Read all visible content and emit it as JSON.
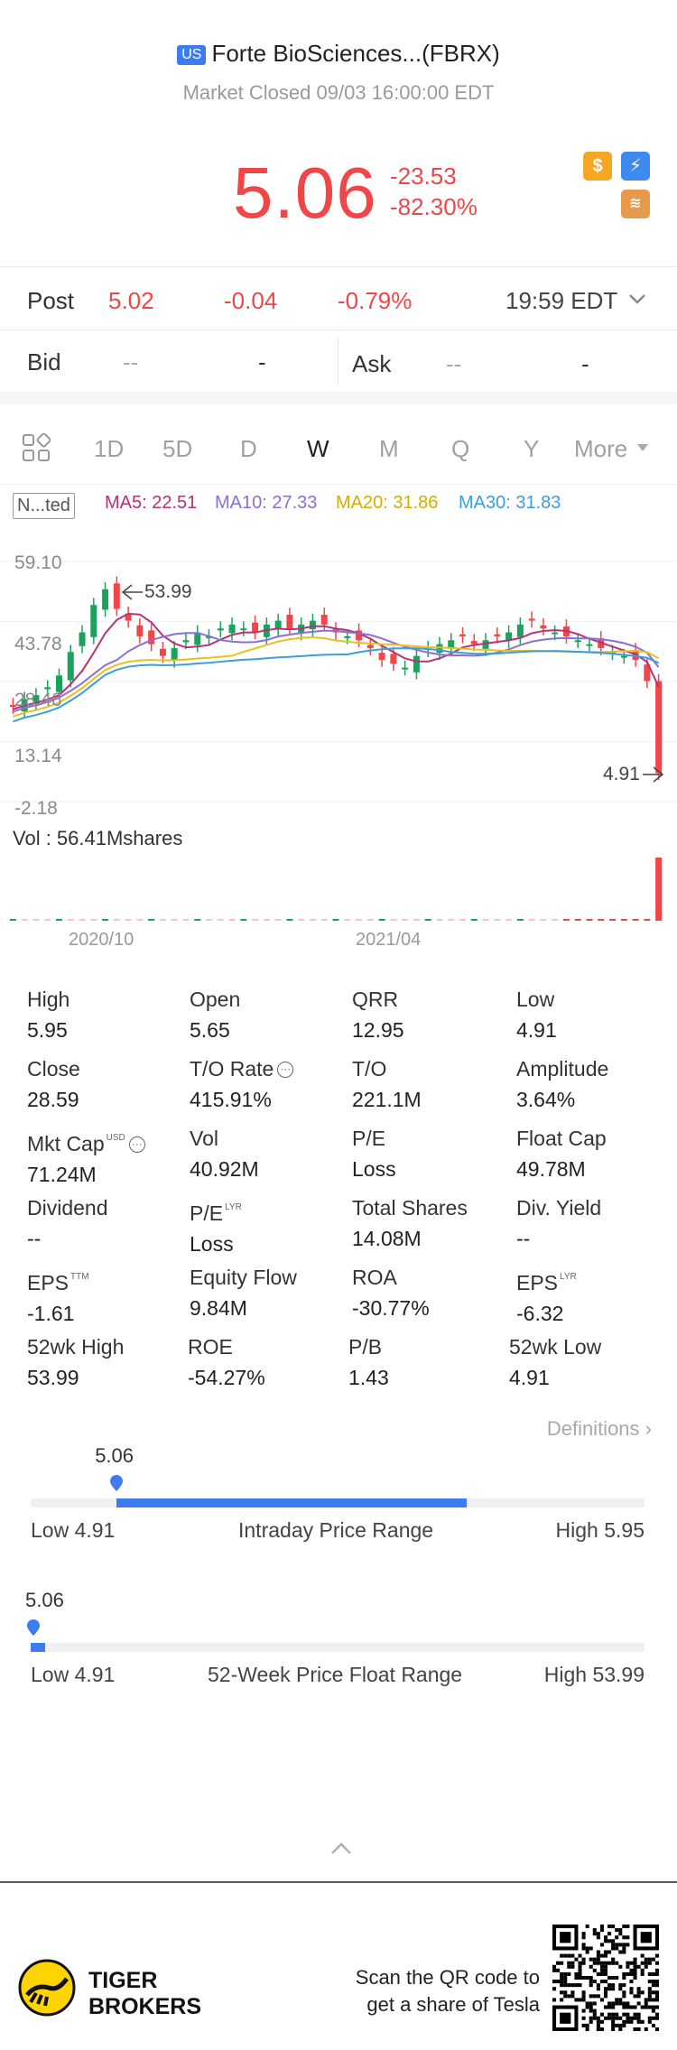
{
  "header": {
    "market_badge": "US",
    "title": "Forte BioSciences...(FBRX)",
    "status": "Market Closed 09/03 16:00:00 EDT",
    "price": "5.06",
    "change": "-23.53",
    "change_pct": "-82.30%",
    "icons": [
      "dollar-icon",
      "lightning-icon",
      "layers-icon"
    ]
  },
  "post": {
    "label": "Post",
    "price": "5.02",
    "change": "-0.04",
    "change_pct": "-0.79%",
    "time": "19:59 EDT"
  },
  "bid_ask": {
    "bid_label": "Bid",
    "bid_price": "--",
    "bid_size": "-",
    "ask_label": "Ask",
    "ask_price": "--",
    "ask_size": "-"
  },
  "tabs": [
    "1D",
    "5D",
    "D",
    "W",
    "M",
    "Q",
    "Y",
    "More"
  ],
  "active_tab": "W",
  "ma": {
    "indicator": "N...ted",
    "ma5": "MA5: 22.51",
    "ma10": "MA10: 27.33",
    "ma20": "MA20: 31.86",
    "ma30": "MA30: 31.83"
  },
  "chart_axis": {
    "y_labels": [
      "59.10",
      "43.78",
      "28.46",
      "13.14",
      "-2.18"
    ],
    "high_marker": "53.99",
    "low_marker": "4.91",
    "vol_label": "Vol  : 56.41Mshares",
    "x_labels": [
      "2020/10",
      "2021/04"
    ]
  },
  "chart_data": {
    "type": "candlestick",
    "ylim": [
      -2.18,
      59.1
    ],
    "weekly_close": [
      22,
      24,
      25,
      27,
      30,
      36,
      41,
      48,
      52,
      47,
      44,
      40,
      38,
      35,
      37,
      39,
      41,
      40,
      42,
      43,
      42,
      41,
      43,
      44,
      42,
      43,
      44,
      43,
      41,
      40,
      39,
      37,
      34,
      33,
      32,
      35,
      37,
      38,
      39,
      40,
      38,
      39,
      40,
      41,
      43,
      44,
      42,
      41,
      40,
      39,
      38,
      37,
      36,
      35,
      34,
      28.59,
      5.06
    ],
    "ma5": 22.51,
    "ma10": 27.33,
    "ma20": 31.86,
    "ma30": 31.83,
    "colors": {
      "up": "#1aa35c",
      "down": "#f04648",
      "ma5": "#b8307a",
      "ma10": "#8b6fd6",
      "ma20": "#e8c21c",
      "ma30": "#3a9ee0"
    }
  },
  "stats": [
    {
      "label": "High",
      "value": "5.95"
    },
    {
      "label": "Open",
      "value": "5.65"
    },
    {
      "label": "QRR",
      "value": "12.95"
    },
    {
      "label": "Low",
      "value": "4.91"
    },
    {
      "label": "Close",
      "value": "28.59"
    },
    {
      "label": "T/O Rate",
      "value": "415.91%"
    },
    {
      "label": "T/O",
      "value": "221.1M"
    },
    {
      "label": "Amplitude",
      "value": "3.64%"
    },
    {
      "label": "Mkt Cap",
      "value": "71.24M"
    },
    {
      "label": "Vol",
      "value": "40.92M"
    },
    {
      "label": "P/E",
      "value": "Loss"
    },
    {
      "label": "Float Cap",
      "value": "49.78M"
    },
    {
      "label": "Dividend",
      "value": "--"
    },
    {
      "label": "P/E",
      "value": "Loss"
    },
    {
      "label": "Total Shares",
      "value": "14.08M"
    },
    {
      "label": "Div. Yield",
      "value": "--"
    },
    {
      "label": "EPS",
      "value": "-1.61"
    },
    {
      "label": "Equity Flow",
      "value": "9.84M"
    },
    {
      "label": "ROA",
      "value": "-30.77%"
    },
    {
      "label": "EPS",
      "value": "-6.32"
    },
    {
      "label": "52wk High",
      "value": "53.99"
    },
    {
      "label": "ROE",
      "value": "-54.27%"
    },
    {
      "label": "P/B",
      "value": "1.43"
    },
    {
      "label": "52wk Low",
      "value": "4.91"
    }
  ],
  "stat_marks": {
    "usd": "USD",
    "ttm": "TTM",
    "lyr": "LYR"
  },
  "definitions_label": "Definitions",
  "intraday_range": {
    "current": "5.06",
    "low": "Low 4.91",
    "title": "Intraday Price Range",
    "high": "High 5.95",
    "position_fraction": 0.14,
    "fill_start_fraction": 0.14,
    "fill_end_fraction": 0.71
  },
  "week52_range": {
    "current": "5.06",
    "low": "Low 4.91",
    "title": "52-Week Price Float Range",
    "high": "High 53.99",
    "position_fraction": 0.003
  },
  "footer": {
    "brand_line1": "TIGER",
    "brand_line2": "BROKERS",
    "scan_line1": "Scan the QR code to",
    "scan_line2": "get a share of Tesla"
  }
}
